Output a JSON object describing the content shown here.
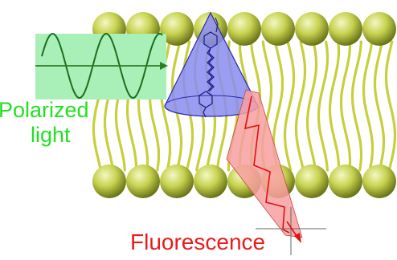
{
  "labels": {
    "polarized_line1": "Polarized",
    "polarized_line2": "light",
    "fluorescence": "Fluorescence"
  },
  "colors": {
    "head_light": "#ecf4a8",
    "head_mid": "#bcc84a",
    "head_dark": "#5f6a10",
    "tail": "#c8cf3c",
    "wave_box": "#a8f0b8",
    "wave": "#1b6f1b",
    "arrow_green": "#2e7d22",
    "polarized_text": "#22e022",
    "cone_fill": "#8a8cf0",
    "cone_stroke": "#2a2aa8",
    "fluor_fill": "#f7a0a0",
    "fluor_stroke": "#e01010",
    "fluor_text": "#e81c1c",
    "molecule": "#1a1a8a",
    "crosshair": "#666666"
  },
  "icons": {
    "wave": "sine-wave-icon",
    "fluorophore": "fluorophore-molecule-icon"
  }
}
